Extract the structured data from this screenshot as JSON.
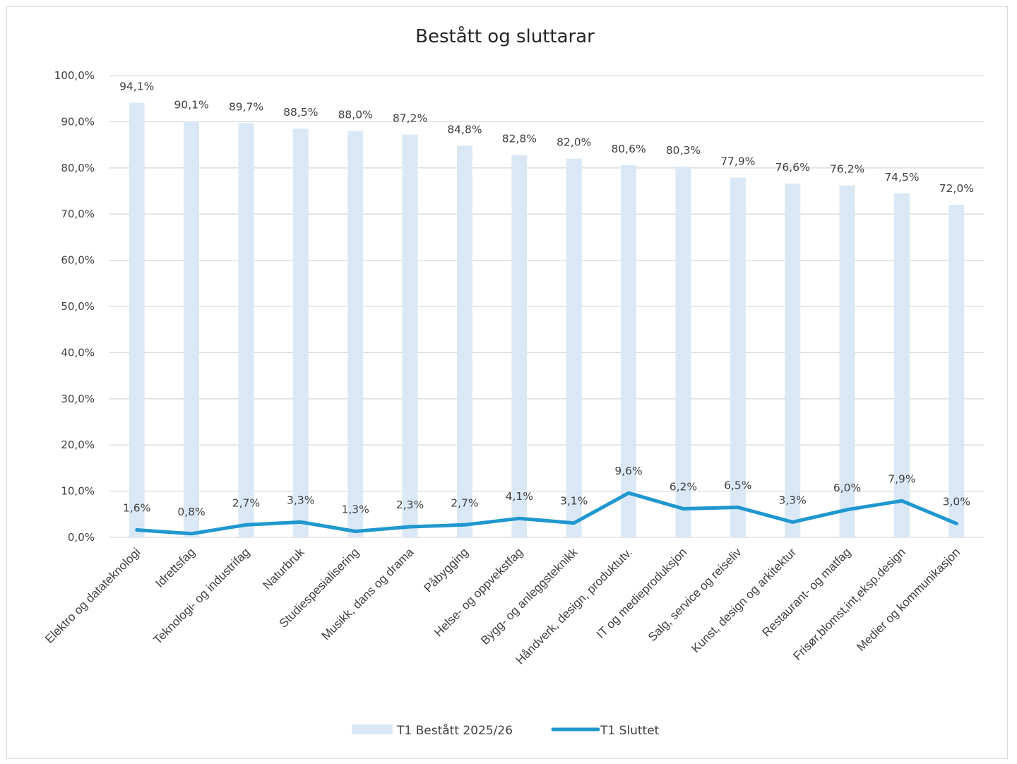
{
  "chart_data": {
    "type": "bar+line",
    "title": "Bestått og sluttarar",
    "xlabel": "",
    "ylabel": "",
    "ylim": [
      0,
      100
    ],
    "y_ticks": [
      "0,0%",
      "10,0%",
      "20,0%",
      "30,0%",
      "40,0%",
      "50,0%",
      "60,0%",
      "70,0%",
      "80,0%",
      "90,0%",
      "100,0%"
    ],
    "grid": true,
    "legend_position": "bottom",
    "categories": [
      "Elektro og datateknologi",
      "Idrettsfag",
      "Teknologi- og industrifag",
      "Naturbruk",
      "Studiespesialisering",
      "Musikk, dans og drama",
      "Påbygging",
      "Helse- og oppvekstfag",
      "Bygg- og anleggsteknikk",
      "Håndverk, design, produktutv.",
      "IT og medieproduksjon",
      "Salg, service og reiseliv",
      "Kunst, design og arkitektur",
      "Restaurant- og matfag",
      "Frisør,blomst,int,eksp.design",
      "Medier og kommunikasjon"
    ],
    "series": [
      {
        "name": "T1 Bestått 2025/26",
        "type": "bar",
        "color": "#dae8f6",
        "values": [
          94.1,
          90.1,
          89.7,
          88.5,
          88.0,
          87.2,
          84.8,
          82.8,
          82.0,
          80.6,
          80.3,
          77.9,
          76.6,
          76.2,
          74.5,
          72.0
        ],
        "labels": [
          "94,1%",
          "90,1%",
          "89,7%",
          "88,5%",
          "88,0%",
          "87,2%",
          "84,8%",
          "82,8%",
          "82,0%",
          "80,6%",
          "80,3%",
          "77,9%",
          "76,6%",
          "76,2%",
          "74,5%",
          "72,0%"
        ]
      },
      {
        "name": "T1 Sluttet",
        "type": "line",
        "color": "#1f97cf",
        "values": [
          1.6,
          0.8,
          2.7,
          3.3,
          1.3,
          2.3,
          2.7,
          4.1,
          3.1,
          9.6,
          6.2,
          6.5,
          3.3,
          6.0,
          7.9,
          3.0
        ],
        "labels": [
          "1,6%",
          "0,8%",
          "2,7%",
          "3,3%",
          "1,3%",
          "2,3%",
          "2,7%",
          "4,1%",
          "3,1%",
          "9,6%",
          "6,2%",
          "6,5%",
          "3,3%",
          "6,0%",
          "7,9%",
          "3,0%"
        ]
      }
    ]
  }
}
